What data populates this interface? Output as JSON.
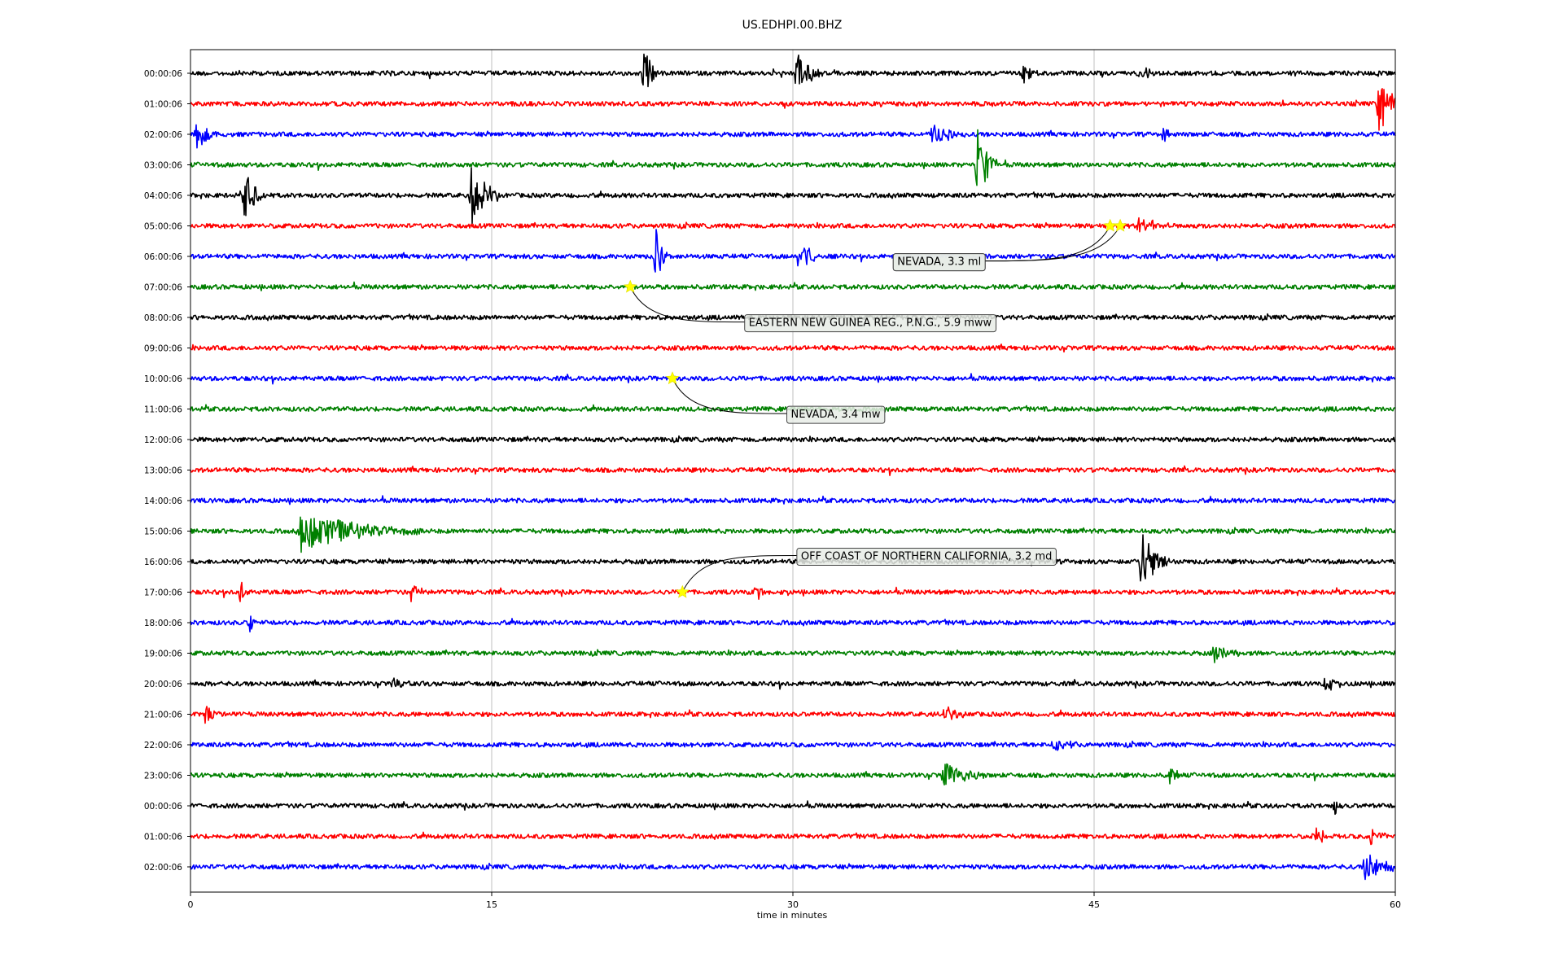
{
  "chart_data": {
    "type": "line",
    "title": "US.EDHPI.00.BHZ",
    "xlabel": "time in minutes",
    "ylabel": "",
    "xlim": [
      0,
      60
    ],
    "xticks": [
      0,
      15,
      30,
      45,
      60
    ],
    "grid_x": true,
    "trace_colors": [
      "#000000",
      "#ff0000",
      "#0000ff",
      "#008000"
    ],
    "rows": [
      "00:00:06",
      "01:00:06",
      "02:00:06",
      "03:00:06",
      "04:00:06",
      "05:00:06",
      "06:00:06",
      "07:00:06",
      "08:00:06",
      "09:00:06",
      "10:00:06",
      "11:00:06",
      "12:00:06",
      "13:00:06",
      "14:00:06",
      "15:00:06",
      "16:00:06",
      "17:00:06",
      "18:00:06",
      "19:00:06",
      "20:00:06",
      "21:00:06",
      "22:00:06",
      "23:00:06",
      "00:00:06",
      "01:00:06",
      "02:00:06"
    ],
    "bursts": [
      {
        "row": 0,
        "minute": 22.6,
        "amp": 1.0,
        "dur": 0.8
      },
      {
        "row": 0,
        "minute": 30.2,
        "amp": 0.85,
        "dur": 1.3
      },
      {
        "row": 0,
        "minute": 41.5,
        "amp": 0.4,
        "dur": 0.7
      },
      {
        "row": 0,
        "minute": 47.5,
        "amp": 0.3,
        "dur": 0.6
      },
      {
        "row": 1,
        "minute": 59.2,
        "amp": 1.2,
        "dur": 1.2
      },
      {
        "row": 2,
        "minute": 0.3,
        "amp": 0.6,
        "dur": 1.2
      },
      {
        "row": 2,
        "minute": 37.0,
        "amp": 0.6,
        "dur": 1.4
      },
      {
        "row": 2,
        "minute": 48.5,
        "amp": 0.4,
        "dur": 0.3
      },
      {
        "row": 3,
        "minute": 39.2,
        "amp": 1.5,
        "dur": 1.0
      },
      {
        "row": 4,
        "minute": 2.7,
        "amp": 1.0,
        "dur": 1.1
      },
      {
        "row": 4,
        "minute": 14.0,
        "amp": 1.3,
        "dur": 1.3
      },
      {
        "row": 5,
        "minute": 47.2,
        "amp": 0.4,
        "dur": 1.5
      },
      {
        "row": 6,
        "minute": 23.2,
        "amp": 1.2,
        "dur": 0.6
      },
      {
        "row": 6,
        "minute": 30.3,
        "amp": 0.8,
        "dur": 1.0
      },
      {
        "row": 15,
        "minute": 5.5,
        "amp": 0.8,
        "dur": 6.0
      },
      {
        "row": 16,
        "minute": 47.3,
        "amp": 1.3,
        "dur": 1.5
      },
      {
        "row": 17,
        "minute": 2.5,
        "amp": 0.5,
        "dur": 0.4
      },
      {
        "row": 17,
        "minute": 11.0,
        "amp": 0.4,
        "dur": 1.0
      },
      {
        "row": 17,
        "minute": 28.2,
        "amp": 0.4,
        "dur": 0.6
      },
      {
        "row": 18,
        "minute": 3.0,
        "amp": 0.4,
        "dur": 0.5
      },
      {
        "row": 19,
        "minute": 51.0,
        "amp": 0.35,
        "dur": 1.5
      },
      {
        "row": 20,
        "minute": 10.0,
        "amp": 0.3,
        "dur": 1.0
      },
      {
        "row": 20,
        "minute": 56.5,
        "amp": 0.3,
        "dur": 1.3
      },
      {
        "row": 21,
        "minute": 0.7,
        "amp": 0.45,
        "dur": 0.8
      },
      {
        "row": 21,
        "minute": 37.5,
        "amp": 0.3,
        "dur": 1.5
      },
      {
        "row": 22,
        "minute": 43.0,
        "amp": 0.3,
        "dur": 1.2
      },
      {
        "row": 23,
        "minute": 37.5,
        "amp": 0.6,
        "dur": 2.0
      },
      {
        "row": 23,
        "minute": 48.8,
        "amp": 0.35,
        "dur": 0.6
      },
      {
        "row": 24,
        "minute": 57.0,
        "amp": 0.4,
        "dur": 0.5
      },
      {
        "row": 25,
        "minute": 56.0,
        "amp": 0.45,
        "dur": 0.8
      },
      {
        "row": 25,
        "minute": 58.8,
        "amp": 0.45,
        "dur": 0.8
      },
      {
        "row": 26,
        "minute": 58.5,
        "amp": 0.7,
        "dur": 1.5
      }
    ],
    "events": [
      {
        "label": "NEVADA, 3.3 ml",
        "row": 5,
        "minute": 45.8,
        "label_minute": 35.2,
        "label_row": 6.15
      },
      {
        "label": "NEVADA, 3.3 ml",
        "row": 5,
        "minute": 46.3,
        "label_minute": 35.2,
        "label_row": 6.15
      },
      {
        "label": "EASTERN NEW GUINEA REG., P.N.G., 5.9 mww",
        "row": 7,
        "minute": 21.9,
        "label_minute": 27.8,
        "label_row": 8.15
      },
      {
        "label": "NEVADA, 3.4 mw",
        "row": 10,
        "minute": 24.0,
        "label_minute": 29.9,
        "label_row": 11.15
      },
      {
        "label": "OFF COAST OF NORTHERN CALIFORNIA, 3.2 md",
        "row": 17,
        "minute": 24.5,
        "label_minute": 30.4,
        "label_row": 15.8
      }
    ]
  }
}
